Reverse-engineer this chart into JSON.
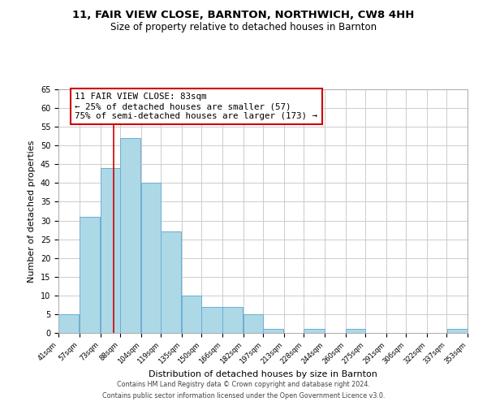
{
  "title": "11, FAIR VIEW CLOSE, BARNTON, NORTHWICH, CW8 4HH",
  "subtitle": "Size of property relative to detached houses in Barnton",
  "xlabel": "Distribution of detached houses by size in Barnton",
  "ylabel": "Number of detached properties",
  "bar_left_edges": [
    41,
    57,
    73,
    88,
    104,
    119,
    135,
    150,
    166,
    182,
    197,
    213,
    228,
    244,
    260,
    275,
    291,
    306,
    322,
    337
  ],
  "bar_heights": [
    5,
    31,
    44,
    52,
    40,
    27,
    10,
    7,
    7,
    5,
    1,
    0,
    1,
    0,
    1,
    0,
    0,
    0,
    0,
    1
  ],
  "bar_widths": [
    16,
    16,
    15,
    16,
    15,
    16,
    15,
    16,
    16,
    15,
    16,
    15,
    16,
    16,
    15,
    16,
    15,
    16,
    15,
    16
  ],
  "tick_labels": [
    "41sqm",
    "57sqm",
    "73sqm",
    "88sqm",
    "104sqm",
    "119sqm",
    "135sqm",
    "150sqm",
    "166sqm",
    "182sqm",
    "197sqm",
    "213sqm",
    "228sqm",
    "244sqm",
    "260sqm",
    "275sqm",
    "291sqm",
    "306sqm",
    "322sqm",
    "337sqm",
    "353sqm"
  ],
  "bar_color": "#ADD8E6",
  "bar_edge_color": "#6baed6",
  "grid_color": "#cccccc",
  "background_color": "#ffffff",
  "annotation_box_edge_color": "#cc0000",
  "annotation_line_color": "#cc0000",
  "property_line_x": 83,
  "ylim": [
    0,
    65
  ],
  "yticks": [
    0,
    5,
    10,
    15,
    20,
    25,
    30,
    35,
    40,
    45,
    50,
    55,
    60,
    65
  ],
  "annotation_title": "11 FAIR VIEW CLOSE: 83sqm",
  "annotation_line1": "← 25% of detached houses are smaller (57)",
  "annotation_line2": "75% of semi-detached houses are larger (173) →",
  "footer_line1": "Contains HM Land Registry data © Crown copyright and database right 2024.",
  "footer_line2": "Contains public sector information licensed under the Open Government Licence v3.0."
}
